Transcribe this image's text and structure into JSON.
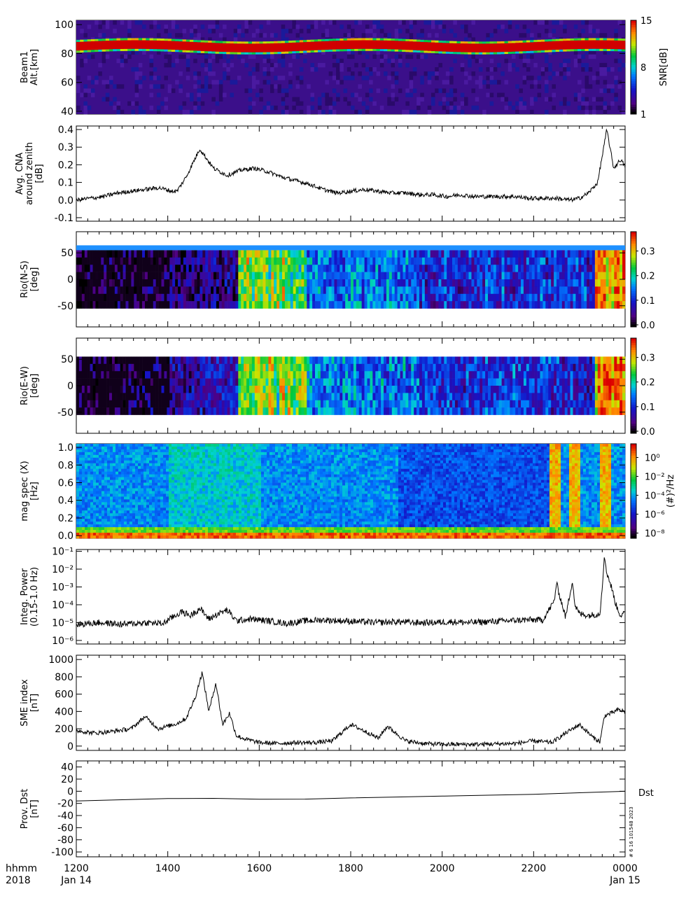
{
  "chart_data": [
    {
      "type": "heatmap",
      "ylabel": [
        "Beam1",
        "Alt.[km]"
      ],
      "yticks": [
        40,
        60,
        80,
        100
      ],
      "ylim": [
        38,
        103
      ],
      "colorbar": {
        "label": "SNR[dB]",
        "ticks": [
          "1",
          "8",
          "15"
        ],
        "range": [
          1,
          15
        ]
      },
      "band": {
        "center_km": 85,
        "halfwidth_km": 3
      }
    },
    {
      "type": "line",
      "ylabel": [
        "Avg. CNA",
        "around zenith",
        "[dB]"
      ],
      "yticks": [
        "-0.1",
        "0.0",
        "0.1",
        "0.2",
        "0.3",
        "0.4"
      ],
      "ylim": [
        -0.12,
        0.42
      ],
      "x": [
        0,
        0.3,
        0.6,
        0.9,
        1.2,
        1.5,
        1.8,
        2.1,
        2.2,
        2.4,
        2.7,
        3.0,
        3.3,
        3.6,
        3.9,
        4.2,
        4.5,
        4.8,
        5.1,
        5.4,
        5.7,
        6.0,
        6.3,
        6.6,
        6.9,
        7.2,
        7.5,
        7.8,
        8.1,
        8.4,
        8.7,
        9.0,
        9.3,
        9.6,
        9.9,
        10.2,
        10.5,
        10.8,
        11.0,
        11.2,
        11.4,
        11.5,
        11.6,
        11.75,
        11.9,
        12.0
      ],
      "y": [
        0.0,
        0.01,
        0.02,
        0.04,
        0.05,
        0.06,
        0.07,
        0.05,
        0.05,
        0.13,
        0.29,
        0.18,
        0.14,
        0.17,
        0.18,
        0.16,
        0.13,
        0.11,
        0.09,
        0.06,
        0.04,
        0.05,
        0.06,
        0.05,
        0.04,
        0.04,
        0.03,
        0.03,
        0.02,
        0.03,
        0.02,
        0.02,
        0.02,
        0.02,
        0.01,
        0.01,
        0.01,
        0.0,
        0.01,
        0.04,
        0.1,
        0.25,
        0.4,
        0.18,
        0.23,
        0.19
      ]
    },
    {
      "type": "heatmap",
      "ylabel": [
        "Rio(N-S)",
        "[deg]"
      ],
      "yticks": [
        "-50",
        "0",
        "50"
      ],
      "ylim": [
        -90,
        90
      ],
      "colorbar": {
        "label": "",
        "ticks": [
          "0.0",
          "0.1",
          "0.2",
          "0.3"
        ],
        "range": [
          0,
          0.37
        ]
      }
    },
    {
      "type": "heatmap",
      "ylabel": [
        "Rio(E-W)",
        "[deg]"
      ],
      "yticks": [
        "-50",
        "0",
        "50"
      ],
      "ylim": [
        -90,
        90
      ],
      "colorbar": {
        "label": "",
        "ticks": [
          "0.0",
          "0.1",
          "0.2",
          "0.3"
        ],
        "range": [
          0,
          0.37
        ]
      }
    },
    {
      "type": "heatmap",
      "ylabel": [
        "mag spec (X)",
        "[Hz]"
      ],
      "yticks": [
        "0.0",
        "0.2",
        "0.4",
        "0.6",
        "0.8",
        "1.0"
      ],
      "ylim": [
        -0.03,
        1.04
      ],
      "colorbar": {
        "label": "(#)²/Hz",
        "ticks": [
          "10⁰",
          "10⁻²",
          "10⁻⁴",
          "10⁻⁶",
          "10⁻⁸"
        ],
        "range_log10": [
          -9,
          1
        ]
      }
    },
    {
      "type": "line",
      "scale": "log",
      "ylabel": [
        "Integ. Power",
        "(0.15-1.0 Hz)"
      ],
      "yticks": [
        "10⁻⁶",
        "10⁻⁵",
        "10⁻⁴",
        "10⁻³",
        "10⁻²",
        "10⁻¹"
      ],
      "ylim_log10": [
        -6.2,
        -0.9
      ],
      "x": [
        0,
        0.5,
        1.0,
        1.5,
        1.9,
        2.1,
        2.3,
        2.5,
        2.7,
        2.9,
        3.1,
        3.3,
        3.5,
        3.8,
        4.2,
        4.6,
        5.0,
        5.4,
        5.8,
        6.2,
        6.6,
        7.0,
        7.4,
        7.8,
        8.2,
        8.6,
        9.0,
        9.4,
        9.8,
        10.2,
        10.45,
        10.5,
        10.55,
        10.7,
        10.85,
        10.9,
        11.0,
        11.2,
        11.45,
        11.55,
        11.6,
        11.7,
        11.8,
        11.9,
        12.0
      ],
      "y": [
        -5.1,
        -5.0,
        -5.1,
        -5.0,
        -5.05,
        -4.7,
        -4.4,
        -4.6,
        -4.2,
        -4.8,
        -4.5,
        -4.3,
        -4.9,
        -4.8,
        -4.9,
        -5.05,
        -4.9,
        -4.85,
        -4.9,
        -4.95,
        -5.0,
        -4.95,
        -5.0,
        -5.0,
        -4.95,
        -5.0,
        -4.95,
        -4.9,
        -4.85,
        -4.85,
        -3.8,
        -2.8,
        -3.3,
        -4.7,
        -2.6,
        -4.0,
        -4.5,
        -4.6,
        -4.5,
        -1.3,
        -2.2,
        -3.0,
        -4.0,
        -4.6,
        -4.5
      ]
    },
    {
      "type": "line",
      "ylabel": [
        "SME index",
        "[nT]"
      ],
      "yticks": [
        "0",
        "200",
        "400",
        "600",
        "800",
        "1000"
      ],
      "ylim": [
        -50,
        1050
      ],
      "x": [
        0,
        0.4,
        0.8,
        1.2,
        1.5,
        1.8,
        2.0,
        2.2,
        2.4,
        2.6,
        2.75,
        2.9,
        3.05,
        3.2,
        3.35,
        3.5,
        3.7,
        4.0,
        4.4,
        4.8,
        5.2,
        5.6,
        6.0,
        6.4,
        6.6,
        6.8,
        7.2,
        7.6,
        8.0,
        8.4,
        8.8,
        9.2,
        9.6,
        10.0,
        10.4,
        10.7,
        11.0,
        11.3,
        11.45,
        11.55,
        11.7,
        11.85,
        12.0
      ],
      "y": [
        180,
        150,
        170,
        200,
        340,
        200,
        230,
        260,
        320,
        560,
        850,
        400,
        730,
        250,
        380,
        120,
        80,
        40,
        30,
        40,
        40,
        60,
        250,
        150,
        90,
        230,
        60,
        30,
        20,
        20,
        20,
        25,
        30,
        60,
        40,
        150,
        250,
        100,
        50,
        350,
        380,
        420,
        400
      ]
    },
    {
      "type": "line",
      "ylabel": [
        "Prov. Dst",
        "[nT]"
      ],
      "yticks": [
        "-100",
        "-80",
        "-60",
        "-40",
        "-20",
        "0",
        "20",
        "40"
      ],
      "ylim": [
        -108,
        50
      ],
      "x": [
        0,
        2.5,
        4.5,
        6.0,
        8.0,
        10.0,
        12.0
      ],
      "y": [
        -16,
        -11,
        -14,
        -11,
        -8,
        -5,
        0
      ],
      "legend": "Dst"
    }
  ],
  "xaxis": {
    "ticks": [
      {
        "label": "1200",
        "sub": "Jan 14",
        "h": 0
      },
      {
        "label": "1400",
        "sub": "",
        "h": 2
      },
      {
        "label": "1600",
        "sub": "",
        "h": 4
      },
      {
        "label": "1800",
        "sub": "",
        "h": 6
      },
      {
        "label": "2000",
        "sub": "",
        "h": 8
      },
      {
        "label": "2200",
        "sub": "",
        "h": 10
      },
      {
        "label": "0000",
        "sub": "Jan 15",
        "h": 12
      }
    ],
    "hlabel": "hhmm",
    "year": "2018",
    "range_hours": [
      0,
      12
    ]
  },
  "stamp": "# 6 16 101548 2023",
  "colors": {
    "frame": "#000000",
    "line": "#000000"
  }
}
